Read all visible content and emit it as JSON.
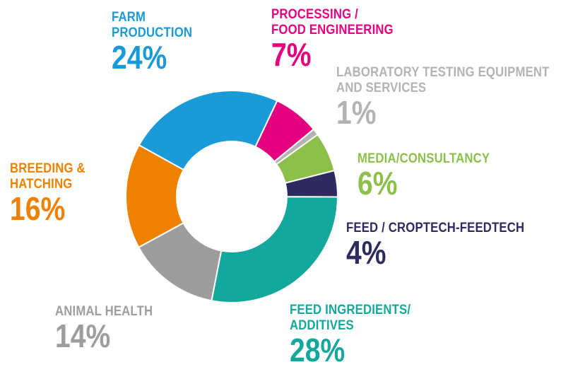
{
  "chart_data": {
    "type": "donut",
    "categories": [
      "FARM PRODUCTION",
      "PROCESSING / FOOD ENGINEERING",
      "LABORATORY TESTING EQUIPMENT AND SERVICES",
      "MEDIA/CONSULTANCY",
      "FEED / CROPTECH-FEEDTECH",
      "FEED INGREDIENTS/ ADDITIVES",
      "ANIMAL HEALTH",
      "BREEDING & HATCHING"
    ],
    "values": [
      24,
      7,
      1,
      6,
      4,
      28,
      14,
      16
    ],
    "value_labels": [
      "24%",
      "7%",
      "1%",
      "6%",
      "4%",
      "28%",
      "14%",
      "16%"
    ],
    "colors": [
      "#1a9ad6",
      "#e4007f",
      "#b3b3b3",
      "#8cc04b",
      "#2f2a5f",
      "#13a89b",
      "#9d9d9e",
      "#ee8200"
    ]
  }
}
